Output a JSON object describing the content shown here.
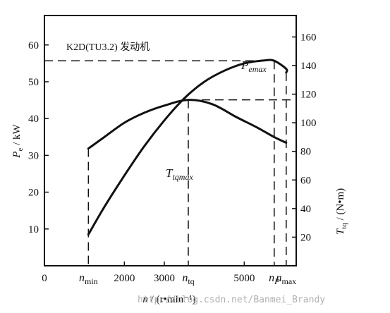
{
  "chart_data": {
    "type": "line",
    "title": "K2D(TU3.2) 发动机",
    "x_axis": {
      "label_var": "n",
      "label_unit": "(r•min⁻¹)",
      "range": [
        0,
        6300
      ],
      "ticks": [
        {
          "value": 0,
          "label": "0"
        },
        {
          "value": 2000,
          "label": "2000"
        },
        {
          "value": 3000,
          "label": "3000"
        },
        {
          "value": 5000,
          "label": "5000"
        }
      ],
      "markers": [
        {
          "value": 1100,
          "main": "n",
          "sub": "min"
        },
        {
          "value": 3600,
          "main": "n",
          "sub": "tq"
        },
        {
          "value": 5750,
          "main": "n",
          "sub": "P"
        },
        {
          "value": 6050,
          "main": "n",
          "sub": "max"
        }
      ]
    },
    "y_left": {
      "label_var": "P",
      "label_sub": "e",
      "label_unit": "kW",
      "range": [
        0,
        68
      ],
      "ticks": [
        10,
        20,
        30,
        40,
        50,
        60
      ]
    },
    "y_right": {
      "label_var": "T",
      "label_sub": "tq",
      "label_unit": "(N•m)",
      "range": [
        0,
        175
      ],
      "ticks": [
        20,
        40,
        60,
        80,
        100,
        120,
        140,
        160
      ]
    },
    "series": [
      {
        "name": "P_emax",
        "axis": "left",
        "points": [
          [
            1100,
            8.5
          ],
          [
            1500,
            16
          ],
          [
            2000,
            24.5
          ],
          [
            2500,
            32.5
          ],
          [
            3000,
            39.5
          ],
          [
            3500,
            45.5
          ],
          [
            4000,
            50
          ],
          [
            4500,
            53
          ],
          [
            5000,
            55
          ],
          [
            5500,
            55.8
          ],
          [
            5750,
            55.7
          ],
          [
            6050,
            53.5
          ],
          [
            6050,
            52.5
          ]
        ]
      },
      {
        "name": "T_tqmax",
        "axis": "right",
        "points": [
          [
            1100,
            82
          ],
          [
            1500,
            90
          ],
          [
            2000,
            100
          ],
          [
            2500,
            107
          ],
          [
            3000,
            112
          ],
          [
            3600,
            116
          ],
          [
            4200,
            113
          ],
          [
            4800,
            104
          ],
          [
            5300,
            97
          ],
          [
            5750,
            90
          ],
          [
            6050,
            86
          ]
        ]
      }
    ],
    "annotations": {
      "pemax": {
        "main": "P",
        "sub": "emax",
        "x": 5750,
        "y": 55.7
      },
      "ttqmax": {
        "main": "T",
        "sub": "tqmax",
        "x": 3600,
        "y": 116
      }
    }
  },
  "watermark": "http://blog.csdn.net/Banmei_Brandy"
}
